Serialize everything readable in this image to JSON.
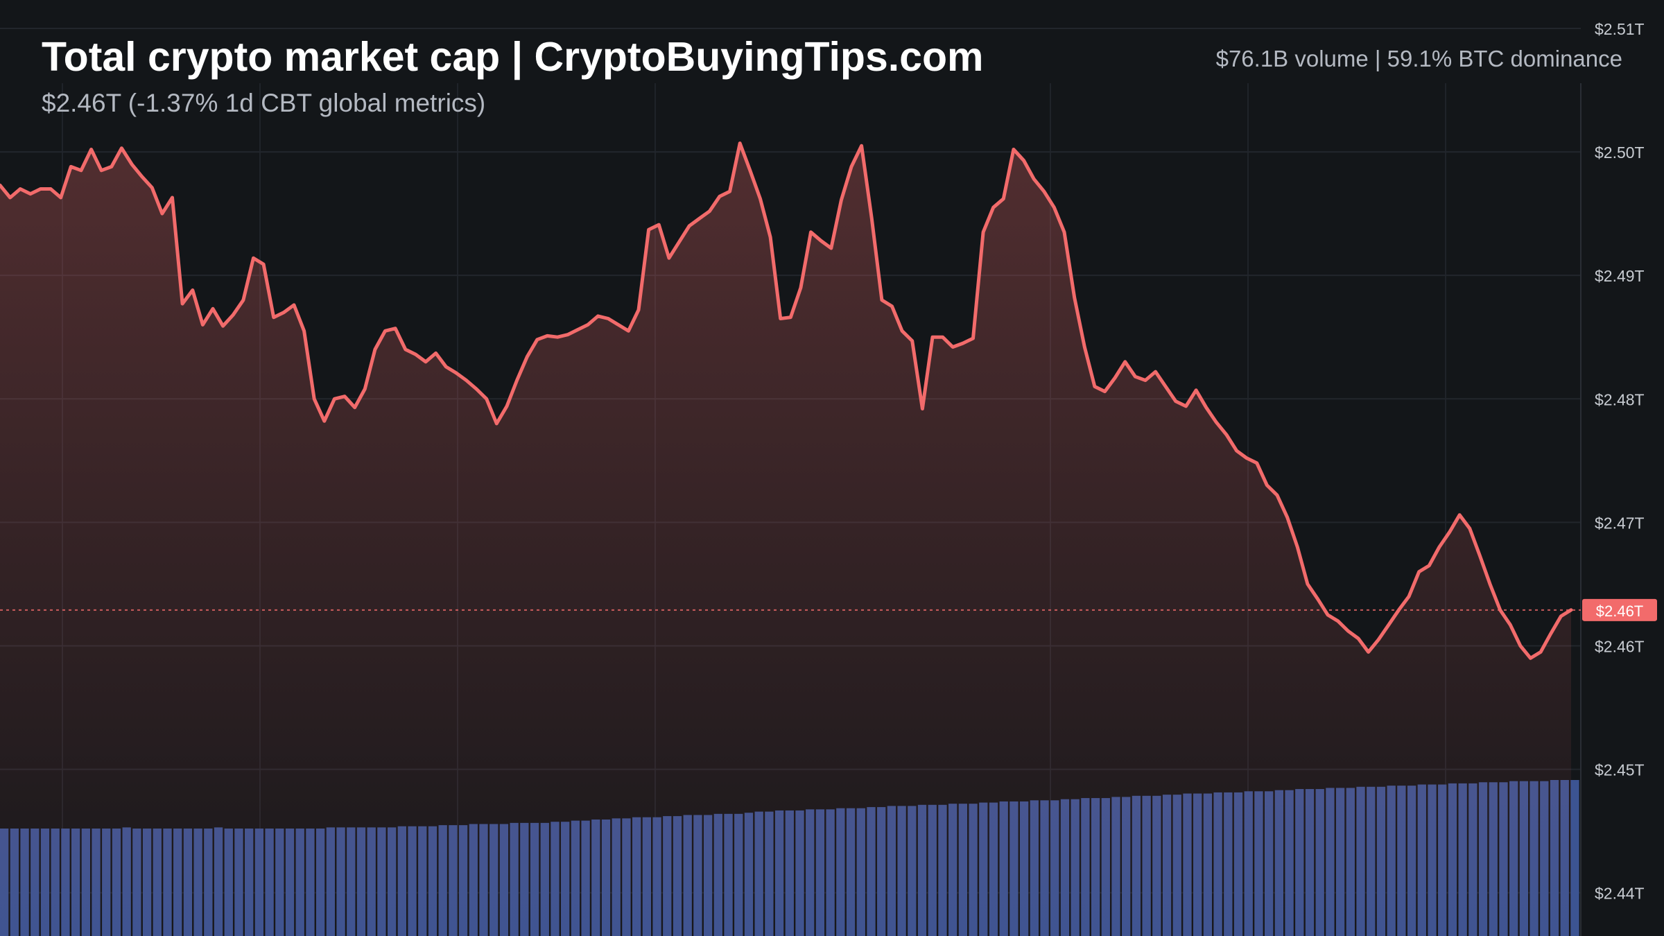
{
  "header": {
    "title": "Total crypto market cap | CryptoBuyingTips.com",
    "subtitle": "$2.46T (-1.37% 1d CBT global metrics)",
    "stats": "$76.1B volume | 59.1% BTC dominance"
  },
  "chart_data": {
    "type": "area",
    "title": "Total crypto market cap | CryptoBuyingTips.com",
    "unit": "USD trillions",
    "y_ticks": [
      {
        "value": 2.51,
        "label": "$2.51T"
      },
      {
        "value": 2.5,
        "label": "$2.50T"
      },
      {
        "value": 2.49,
        "label": "$2.49T"
      },
      {
        "value": 2.48,
        "label": "$2.48T"
      },
      {
        "value": 2.47,
        "label": "$2.47T"
      },
      {
        "value": 2.46,
        "label": "$2.46T"
      },
      {
        "value": 2.45,
        "label": "$2.45T"
      },
      {
        "value": 2.44,
        "label": "$2.44T"
      }
    ],
    "ylim": [
      2.4365,
      2.5123
    ],
    "grid": true,
    "current_value": 2.4629,
    "current_label": "$2.46T",
    "series": [
      {
        "type": "line",
        "color": "#f26b6b",
        "values": [
          2.4973,
          2.4963,
          2.497,
          2.4966,
          2.497,
          2.497,
          2.4963,
          2.4988,
          2.4985,
          2.5002,
          2.4985,
          2.4988,
          2.5003,
          2.499,
          2.498,
          2.4971,
          2.495,
          2.4963,
          2.4877,
          2.4888,
          2.486,
          2.4873,
          2.4859,
          2.4868,
          2.488,
          2.4914,
          2.4909,
          2.4866,
          2.487,
          2.4876,
          2.4855,
          2.48,
          2.4782,
          2.48,
          2.4802,
          2.4793,
          2.4808,
          2.484,
          2.4855,
          2.4857,
          2.484,
          2.4836,
          2.483,
          2.4837,
          2.4826,
          2.4821,
          2.4815,
          2.4808,
          2.48,
          2.478,
          2.4794,
          2.4815,
          2.4834,
          2.4848,
          2.4851,
          2.485,
          2.4852,
          2.4856,
          2.486,
          2.4867,
          2.4865,
          2.486,
          2.4855,
          2.4872,
          2.4937,
          2.4941,
          2.4914,
          2.4927,
          2.494,
          2.4946,
          2.4952,
          2.4964,
          2.4968,
          2.5007,
          2.4985,
          2.4962,
          2.4931,
          2.4865,
          2.4866,
          2.489,
          2.4935,
          2.4928,
          2.4922,
          2.4961,
          2.4988,
          2.5005,
          2.4946,
          2.488,
          2.4875,
          2.4855,
          2.4847,
          2.4792,
          2.485,
          2.485,
          2.4842,
          2.4845,
          2.4849,
          2.4935,
          2.4955,
          2.4962,
          2.5002,
          2.4993,
          2.4978,
          2.4968,
          2.4955,
          2.4935,
          2.4882,
          2.4842,
          2.481,
          2.4806,
          2.4817,
          2.483,
          2.4818,
          2.4815,
          2.4822,
          2.481,
          2.4798,
          2.4794,
          2.4807,
          2.4793,
          2.4781,
          2.4771,
          2.4758,
          2.4752,
          2.4748,
          2.473,
          2.4722,
          2.4704,
          2.468,
          2.465,
          2.4638,
          2.4625,
          2.462,
          2.4612,
          2.4606,
          2.4595,
          2.4605,
          2.4617,
          2.4629,
          2.464,
          2.466,
          2.4665,
          2.468,
          2.4692,
          2.4706,
          2.4695,
          2.4673,
          2.465,
          2.4629,
          2.4617,
          2.46,
          2.459,
          2.4595,
          2.461,
          2.4624,
          2.4629
        ]
      },
      {
        "type": "bar",
        "color": "#3c5492",
        "values": [
          57,
          57,
          57,
          57,
          57,
          57,
          57,
          57,
          57,
          57,
          57,
          57,
          58,
          57,
          57,
          57,
          57,
          57,
          57,
          57,
          57,
          58,
          57,
          57,
          57,
          57,
          57,
          57,
          57,
          57,
          57,
          57,
          58,
          58,
          58,
          58,
          58,
          58,
          58,
          59,
          59,
          59,
          59,
          60,
          60,
          60,
          61,
          61,
          61,
          61,
          62,
          62,
          62,
          62,
          63,
          63,
          64,
          64,
          65,
          65,
          66,
          66,
          67,
          67,
          67,
          68,
          68,
          69,
          69,
          69,
          70,
          70,
          70,
          71,
          72,
          72,
          73,
          73,
          73,
          74,
          74,
          74,
          75,
          75,
          75,
          76,
          76,
          77,
          77,
          77,
          78,
          78,
          78,
          79,
          79,
          79,
          80,
          80,
          81,
          81,
          81,
          82,
          82,
          82,
          83,
          83,
          84,
          84,
          84,
          85,
          85,
          86,
          86,
          86,
          87,
          87,
          88,
          88,
          88,
          89,
          89,
          89,
          90,
          90,
          90,
          91,
          91,
          92,
          92,
          92,
          93,
          93,
          93,
          94,
          94,
          94,
          95,
          95,
          95,
          96,
          96,
          96,
          97,
          97,
          97,
          98,
          98,
          98,
          99,
          99,
          99,
          99,
          100,
          100,
          100
        ]
      }
    ]
  }
}
